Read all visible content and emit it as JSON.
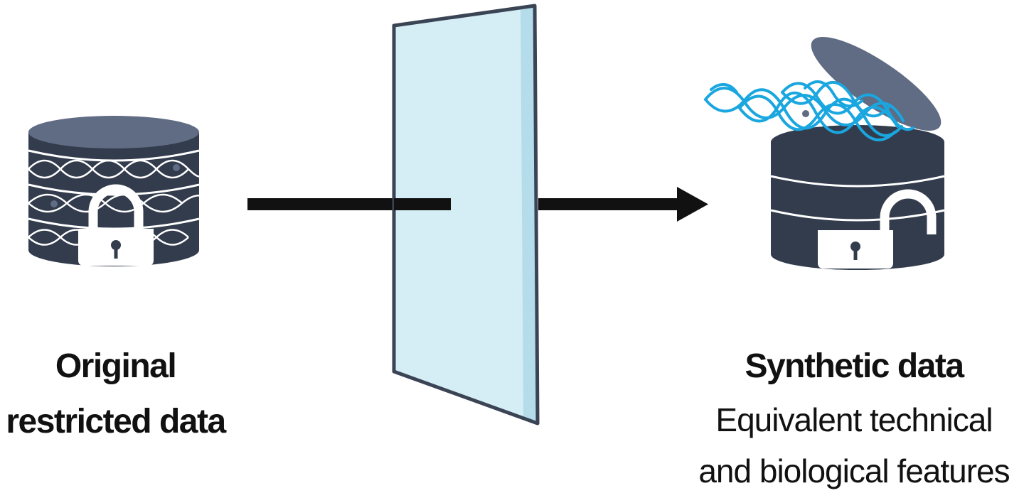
{
  "left": {
    "title_line1": "Original",
    "title_line2": "restricted data"
  },
  "right": {
    "title": "Synthetic data",
    "subtitle_line1": "Equivalent technical",
    "subtitle_line2": "and biological features"
  },
  "colors": {
    "database_dark": "#333c4d",
    "database_top": "#606b84",
    "lock_body": "#ffffff",
    "lock_keyhole": "#333c4d",
    "wave_white": "#ffffff",
    "wave_blue": "#1aa6df",
    "panel_fill": "#d5edf4",
    "panel_edge": "#b5dcea",
    "panel_border": "#3a4454",
    "arrow": "#111111"
  }
}
